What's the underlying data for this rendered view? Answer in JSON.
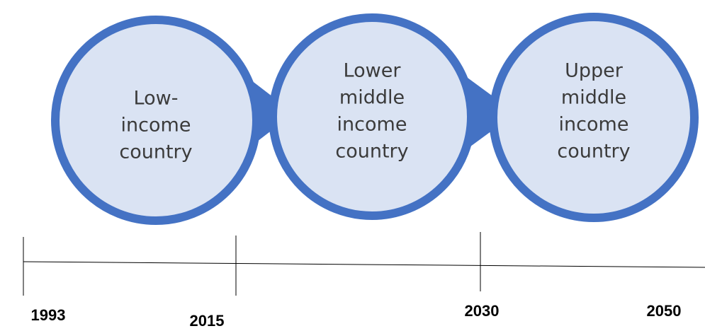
{
  "nodes": [
    {
      "lines": [
        "Low-",
        "income",
        "country"
      ]
    },
    {
      "lines": [
        "Lower",
        "middle",
        "income",
        "country"
      ]
    },
    {
      "lines": [
        "Upper",
        "middle",
        "income",
        "country"
      ]
    }
  ],
  "timeline": {
    "years": [
      "1993",
      "2015",
      "2030",
      "2050"
    ]
  }
}
